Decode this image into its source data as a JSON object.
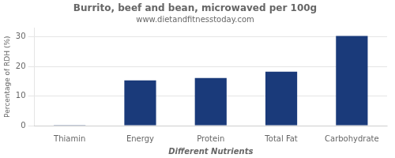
{
  "chart_data": {
    "type": "bar",
    "title": "Burrito, beef and bean, microwaved per 100g",
    "subtitle": "www.dietandfitnesstoday.com",
    "categories": [
      "Thiamin",
      "Energy",
      "Protein",
      "Total Fat",
      "Carbohydrate"
    ],
    "values": [
      0.1,
      15.3,
      16.1,
      18.2,
      30.3
    ],
    "color": "#1a3a7a",
    "ylabel": "Percentage of RDH (%)",
    "xlabel": "Different Nutrients",
    "ylim": [
      0,
      33
    ],
    "yticks": [
      0,
      10,
      20,
      30
    ],
    "grid": true
  }
}
